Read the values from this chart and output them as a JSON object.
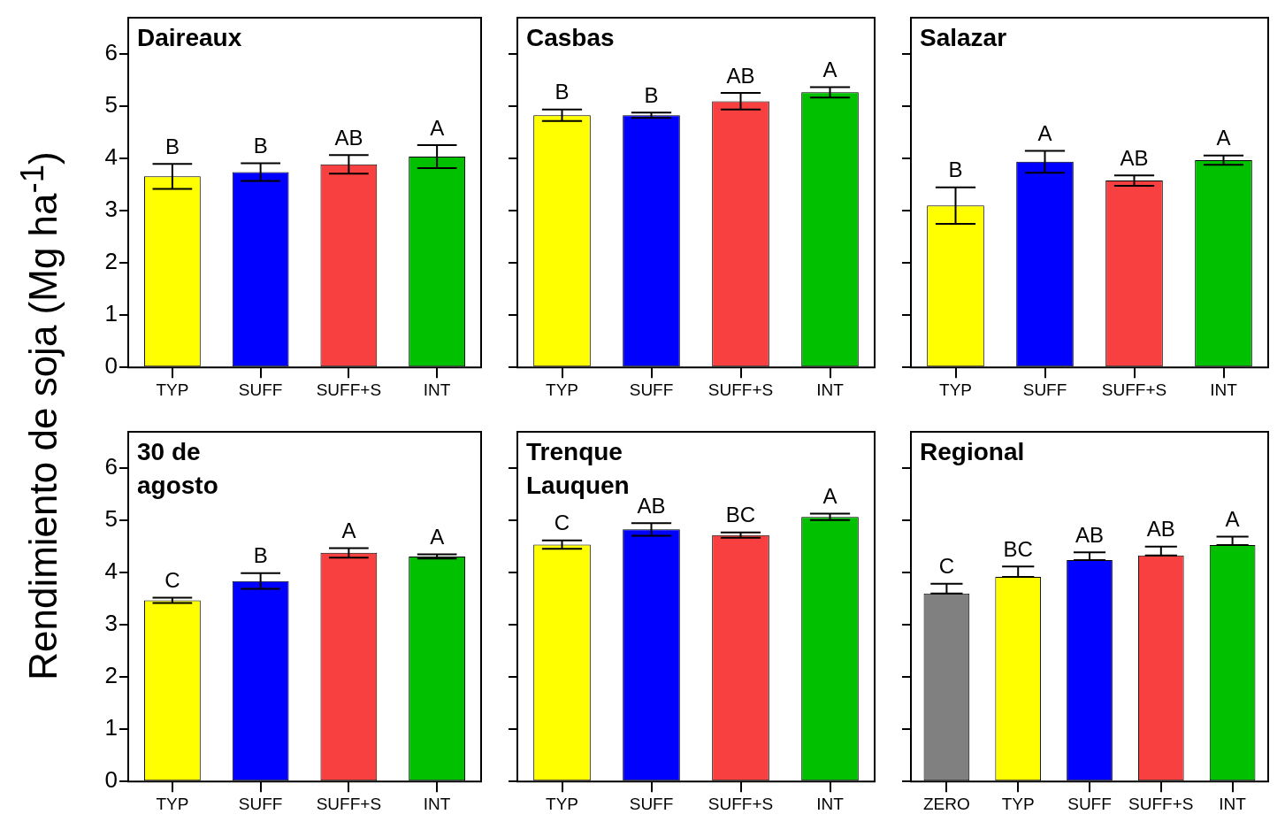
{
  "chart_data": [
    {
      "type": "bar",
      "title": "Daireaux",
      "ylabel": "Rendimiento de soja (Mg ha$^{-1}$)",
      "categories": [
        "TYP",
        "SUFF",
        "SUFF+S",
        "INT"
      ],
      "values": [
        3.66,
        3.74,
        3.89,
        4.04
      ],
      "colors": [
        "#ffff00",
        "#0000ff",
        "#f84040",
        "#00c000"
      ],
      "errors": [
        0.24,
        0.17,
        0.18,
        0.22
      ],
      "ylim": [
        0,
        6.7
      ],
      "yticks": [
        0,
        1,
        2,
        3,
        4,
        5,
        6
      ],
      "annotations": [
        {
          "text": "B",
          "x": "TYP",
          "y": 3.66
        },
        {
          "text": "B",
          "x": "SUFF",
          "y": 3.74
        },
        {
          "text": "AB",
          "x": "SUFF+S",
          "y": 3.89
        },
        {
          "text": "A",
          "x": "INT",
          "y": 4.04
        }
      ]
    },
    {
      "type": "bar",
      "title": "Casbas",
      "categories": [
        "TYP",
        "SUFF",
        "SUFF+S",
        "INT"
      ],
      "values": [
        4.83,
        4.83,
        5.1,
        5.27
      ],
      "colors": [
        "#ffff00",
        "#0000ff",
        "#f84040",
        "#00c000"
      ],
      "errors": [
        0.11,
        0.05,
        0.16,
        0.1
      ],
      "ylim": [
        0,
        6.7
      ],
      "yticks": [
        0,
        1,
        2,
        3,
        4,
        5,
        6
      ],
      "tick_labels": "x",
      "annotations": [
        {
          "text": "B",
          "x": "TYP",
          "y": 4.83
        },
        {
          "text": "B",
          "x": "SUFF",
          "y": 4.83
        },
        {
          "text": "AB",
          "x": "SUFF+S",
          "y": 5.1
        },
        {
          "text": "A",
          "x": "INT",
          "y": 5.27
        }
      ]
    },
    {
      "type": "bar",
      "title": "Salazar",
      "categories": [
        "TYP",
        "SUFF",
        "SUFF+S",
        "INT"
      ],
      "values": [
        3.1,
        3.94,
        3.58,
        3.97
      ],
      "colors": [
        "#ffff00",
        "#0000ff",
        "#f84040",
        "#00c000"
      ],
      "errors": [
        0.35,
        0.21,
        0.1,
        0.09
      ],
      "ylim": [
        0,
        6.7
      ],
      "yticks": [
        0,
        1,
        2,
        3,
        4,
        5,
        6
      ],
      "tick_labels": "x",
      "annotations": [
        {
          "text": "B",
          "x": "TYP",
          "y": 3.1
        },
        {
          "text": "A",
          "x": "SUFF",
          "y": 3.94
        },
        {
          "text": "AB",
          "x": "SUFF+S",
          "y": 3.58
        },
        {
          "text": "A",
          "x": "INT",
          "y": 3.97
        }
      ]
    },
    {
      "type": "bar",
      "title": "30 de agosto",
      "categories": [
        "TYP",
        "SUFF",
        "SUFF+S",
        "INT"
      ],
      "values": [
        3.47,
        3.84,
        4.38,
        4.31
      ],
      "colors": [
        "#ffff00",
        "#0000ff",
        "#f84040",
        "#00c000"
      ],
      "errors": [
        0.05,
        0.15,
        0.09,
        0.04
      ],
      "ylim": [
        0,
        6.7
      ],
      "yticks": [
        0,
        1,
        2,
        3,
        4,
        5,
        6
      ],
      "annotations": [
        {
          "text": "C",
          "x": "TYP",
          "y": 3.47
        },
        {
          "text": "B",
          "x": "SUFF",
          "y": 3.84
        },
        {
          "text": "A",
          "x": "SUFF+S",
          "y": 4.38
        },
        {
          "text": "A",
          "x": "INT",
          "y": 4.31
        }
      ]
    },
    {
      "type": "bar",
      "title": "Trenque Lauquen",
      "categories": [
        "TYP",
        "SUFF",
        "SUFF+S",
        "INT"
      ],
      "values": [
        4.54,
        4.83,
        4.72,
        5.07
      ],
      "colors": [
        "#ffff00",
        "#0000ff",
        "#f84040",
        "#00c000"
      ],
      "errors": [
        0.08,
        0.12,
        0.05,
        0.06
      ],
      "ylim": [
        0,
        6.7
      ],
      "yticks": [
        0,
        1,
        2,
        3,
        4,
        5,
        6
      ],
      "tick_labels": "x",
      "annotations": [
        {
          "text": "C",
          "x": "TYP",
          "y": 4.54
        },
        {
          "text": "AB",
          "x": "SUFF",
          "y": 4.83
        },
        {
          "text": "BC",
          "x": "SUFF+S",
          "y": 4.72
        },
        {
          "text": "A",
          "x": "INT",
          "y": 5.07
        }
      ]
    },
    {
      "type": "bar",
      "title": "Regional",
      "categories": [
        "ZERO",
        "TYP",
        "SUFF",
        "SUFF+S",
        "INT"
      ],
      "values": [
        3.6,
        3.92,
        4.24,
        4.33,
        4.53
      ],
      "colors": [
        "#808080",
        "#ffff00",
        "#0000ff",
        "#f84040",
        "#00c000"
      ],
      "errors": [
        [
          3.6,
          3.79
        ],
        [
          3.92,
          4.12
        ],
        [
          4.24,
          4.39
        ],
        [
          4.33,
          4.5
        ],
        [
          4.53,
          4.69
        ]
      ],
      "ylim": [
        0,
        6.7
      ],
      "yticks": [
        0,
        1,
        2,
        3,
        4,
        5,
        6
      ],
      "tick_labels": "x",
      "annotations": [
        {
          "text": "C",
          "x": "ZERO",
          "y": 3.6
        },
        {
          "text": "BC",
          "x": "TYP",
          "y": 3.92
        },
        {
          "text": "AB",
          "x": "SUFF",
          "y": 4.24
        },
        {
          "text": "AB",
          "x": "SUFF+S",
          "y": 4.33
        },
        {
          "text": "A",
          "x": "INT",
          "y": 4.53
        }
      ]
    }
  ]
}
